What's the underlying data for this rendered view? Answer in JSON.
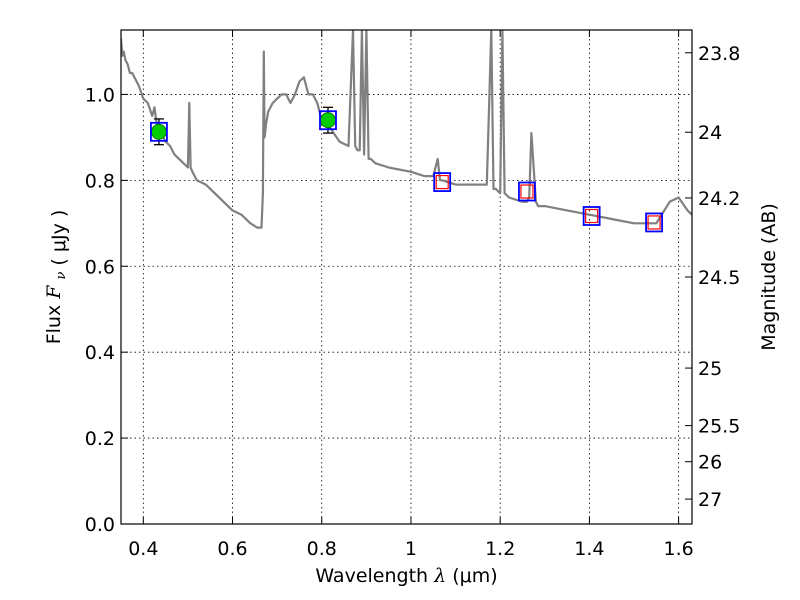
{
  "chart_data": {
    "type": "line",
    "xlabel": "Wavelength",
    "xlabel_symbol": "λ",
    "xlabel_unit": "(μm)",
    "ylabel": "Flux",
    "ylabel_symbol": "F",
    "ylabel_sub": "ν",
    "ylabel_unit": "( μJy )",
    "y2label": "Magnitude (AB)",
    "xlim": [
      0.35,
      1.63
    ],
    "ylim": [
      0.0,
      1.15
    ],
    "grid": true,
    "xticks": [
      {
        "value": 0.4,
        "label": "0.4"
      },
      {
        "value": 0.6,
        "label": "0.6"
      },
      {
        "value": 0.8,
        "label": "0.8"
      },
      {
        "value": 1.0,
        "label": "1"
      },
      {
        "value": 1.2,
        "label": "1.2"
      },
      {
        "value": 1.4,
        "label": "1.4"
      },
      {
        "value": 1.6,
        "label": "1.6"
      }
    ],
    "yticks": [
      {
        "value": 0.0,
        "label": "0.0"
      },
      {
        "value": 0.2,
        "label": "0.2"
      },
      {
        "value": 0.4,
        "label": "0.4"
      },
      {
        "value": 0.6,
        "label": "0.6"
      },
      {
        "value": 0.8,
        "label": "0.8"
      },
      {
        "value": 1.0,
        "label": "1.0"
      }
    ],
    "y2ticks": [
      {
        "flux": 1.097,
        "label": "23.8"
      },
      {
        "flux": 0.912,
        "label": "24"
      },
      {
        "flux": 0.759,
        "label": "24.2"
      },
      {
        "flux": 0.575,
        "label": "24.5"
      },
      {
        "flux": 0.363,
        "label": "25"
      },
      {
        "flux": 0.229,
        "label": "25.5"
      },
      {
        "flux": 0.145,
        "label": "26"
      },
      {
        "flux": 0.058,
        "label": "27"
      }
    ],
    "series": [
      {
        "kind": "model_spectrum",
        "color": "#808080",
        "x": [
          0.35,
          0.353,
          0.356,
          0.36,
          0.365,
          0.37,
          0.375,
          0.38,
          0.39,
          0.4,
          0.41,
          0.42,
          0.425,
          0.43,
          0.44,
          0.45,
          0.46,
          0.47,
          0.48,
          0.49,
          0.5,
          0.503,
          0.506,
          0.51,
          0.52,
          0.54,
          0.56,
          0.58,
          0.6,
          0.62,
          0.64,
          0.655,
          0.665,
          0.668,
          0.67,
          0.672,
          0.675,
          0.68,
          0.69,
          0.7,
          0.71,
          0.72,
          0.73,
          0.74,
          0.75,
          0.76,
          0.77,
          0.78,
          0.79,
          0.8,
          0.82,
          0.84,
          0.86,
          0.87,
          0.875,
          0.88,
          0.885,
          0.89,
          0.895,
          0.9,
          0.905,
          0.91,
          0.92,
          0.95,
          1.0,
          1.03,
          1.05,
          1.06,
          1.065,
          1.07,
          1.1,
          1.15,
          1.17,
          1.18,
          1.185,
          1.19,
          1.2,
          1.205,
          1.21,
          1.22,
          1.25,
          1.26,
          1.265,
          1.27,
          1.28,
          1.285,
          1.29,
          1.3,
          1.35,
          1.4,
          1.45,
          1.5,
          1.55,
          1.58,
          1.6,
          1.62,
          1.63
        ],
        "y": [
          1.13,
          1.09,
          1.1,
          1.08,
          1.07,
          1.05,
          1.05,
          1.04,
          1.02,
          0.99,
          0.98,
          0.95,
          0.97,
          0.93,
          0.91,
          0.89,
          0.88,
          0.86,
          0.85,
          0.84,
          0.83,
          0.98,
          0.83,
          0.82,
          0.8,
          0.79,
          0.77,
          0.75,
          0.73,
          0.72,
          0.7,
          0.69,
          0.69,
          0.77,
          1.1,
          0.9,
          0.93,
          0.96,
          0.98,
          0.99,
          1.0,
          1.0,
          0.98,
          1.0,
          1.03,
          1.04,
          1.0,
          1.0,
          0.98,
          0.94,
          0.92,
          0.89,
          0.88,
          1.15,
          0.88,
          0.87,
          0.87,
          1.15,
          0.86,
          1.15,
          0.85,
          0.85,
          0.84,
          0.83,
          0.82,
          0.81,
          0.81,
          0.85,
          0.8,
          0.8,
          0.79,
          0.79,
          0.79,
          1.15,
          0.78,
          0.78,
          0.77,
          1.15,
          0.77,
          0.76,
          0.75,
          0.75,
          0.76,
          0.91,
          0.75,
          0.74,
          0.74,
          0.74,
          0.73,
          0.72,
          0.71,
          0.7,
          0.7,
          0.75,
          0.76,
          0.73,
          0.72
        ]
      },
      {
        "kind": "observed",
        "marker": "circle",
        "color": "#00cc00",
        "points": [
          {
            "x": 0.435,
            "y": 0.913,
            "err": 0.03
          },
          {
            "x": 0.814,
            "y": 0.94,
            "err": 0.03
          }
        ]
      },
      {
        "kind": "model_photometry",
        "marker": "square",
        "color": "#0000ff",
        "points": [
          {
            "x": 0.435,
            "y": 0.913
          },
          {
            "x": 0.814,
            "y": 0.94
          },
          {
            "x": 1.07,
            "y": 0.796
          },
          {
            "x": 1.26,
            "y": 0.774
          },
          {
            "x": 1.405,
            "y": 0.717
          },
          {
            "x": 1.545,
            "y": 0.702
          }
        ]
      },
      {
        "kind": "upper_limits",
        "marker": "square",
        "color": "#ff0000",
        "points": [
          {
            "x": 1.07,
            "y": 0.796
          },
          {
            "x": 1.26,
            "y": 0.774
          },
          {
            "x": 1.405,
            "y": 0.717
          },
          {
            "x": 1.545,
            "y": 0.702
          }
        ]
      }
    ]
  }
}
